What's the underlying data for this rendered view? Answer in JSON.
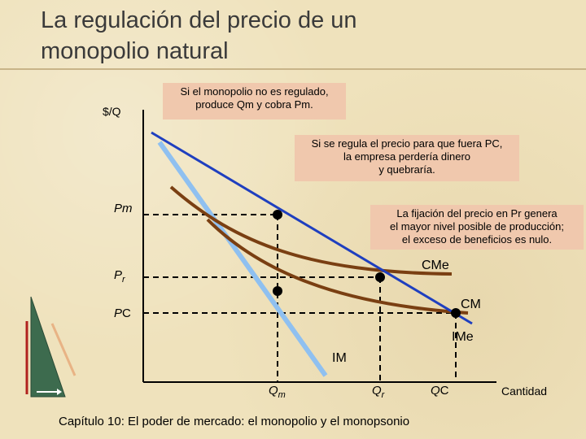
{
  "slide": {
    "title_line1": "La regulación del precio de un",
    "title_line2": "monopolio natural",
    "footer": "Capítulo 10: El poder de mercado: el monopolio y el monopsonio"
  },
  "notes": {
    "unregulated": {
      "line1": "Si el monopolio no es regulado,",
      "line2": "produce Qm y cobra Pm."
    },
    "regulated_c": {
      "line1": "Si se regula el precio para que fuera PC,",
      "line2": "la empresa perdería dinero",
      "line3": "y quebraría."
    },
    "regulated_r": {
      "line1": "La fijación del precio en Pr genera",
      "line2": "el mayor nivel posible de producción;",
      "line3": "el exceso de beneficios es nulo."
    }
  },
  "chart_data": {
    "type": "line",
    "ylabel": "$/Q",
    "xlabel": "Cantidad",
    "y_ticks": [
      "Pm",
      "Pr",
      "PC"
    ],
    "x_ticks": [
      "Qm",
      "Qr",
      "QC"
    ],
    "series": [
      {
        "name": "IMe",
        "color": "#1f3fbf"
      },
      {
        "name": "IM",
        "color": "#8fc0f0"
      },
      {
        "name": "CMe",
        "color": "#7a3f12"
      },
      {
        "name": "CM",
        "color": "#7a3f12"
      }
    ]
  },
  "colors": {
    "background": "#efe2bc",
    "note_fill": "#f0c8ad",
    "demand": "#1f3fbf",
    "marginal_revenue": "#8fc0f0",
    "cost": "#7a3f12"
  },
  "icons": [
    "triangle-ruler-decoration-icon"
  ]
}
